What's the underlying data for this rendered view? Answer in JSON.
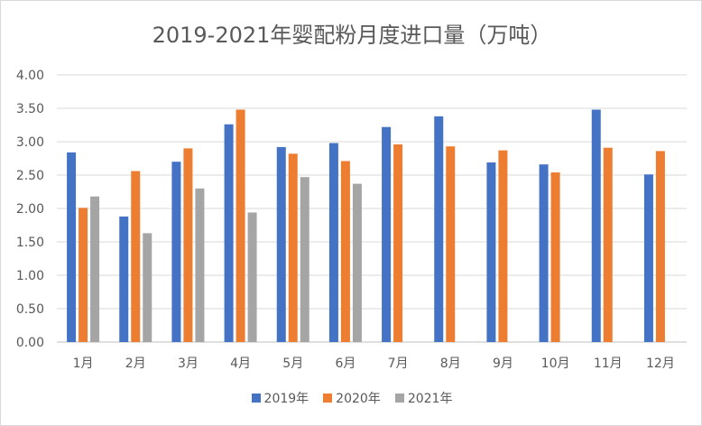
{
  "chart_data": {
    "type": "bar",
    "title": "2019-2021年婴配粉月度进口量（万吨）",
    "categories": [
      "1月",
      "2月",
      "3月",
      "4月",
      "5月",
      "6月",
      "7月",
      "8月",
      "9月",
      "10月",
      "11月",
      "12月"
    ],
    "ylim": [
      0,
      4
    ],
    "yticks": [
      "0.00",
      "0.50",
      "1.00",
      "1.50",
      "2.00",
      "2.50",
      "3.00",
      "3.50",
      "4.00"
    ],
    "grid": true,
    "legend_position": "bottom",
    "series": [
      {
        "name": "2019年",
        "color": "#4472c4",
        "values": [
          2.84,
          1.88,
          2.7,
          3.26,
          2.92,
          2.98,
          3.22,
          3.38,
          2.69,
          2.66,
          3.48,
          2.51
        ]
      },
      {
        "name": "2020年",
        "color": "#ed7d31",
        "values": [
          2.01,
          2.56,
          2.9,
          3.48,
          2.82,
          2.71,
          2.96,
          2.93,
          2.87,
          2.54,
          2.91,
          2.86
        ]
      },
      {
        "name": "2021年",
        "color": "#a5a5a5",
        "values": [
          2.18,
          1.63,
          2.3,
          1.94,
          2.47,
          2.37,
          null,
          null,
          null,
          null,
          null,
          null
        ]
      }
    ]
  }
}
